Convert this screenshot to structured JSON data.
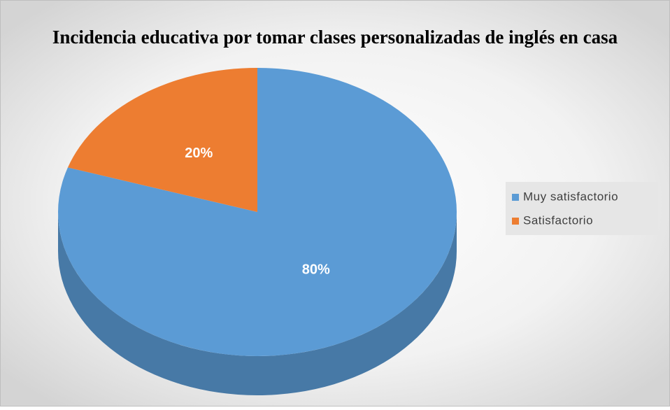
{
  "chart_data": {
    "type": "pie",
    "title": "Incidencia educativa por tomar clases personalizadas de inglés en casa",
    "categories": [
      "Muy satisfactorio",
      "Satisfactorio"
    ],
    "values": [
      80,
      20
    ],
    "value_labels": [
      "80%",
      "20%"
    ],
    "colors": [
      "#5b9bd5",
      "#ed7d31"
    ],
    "legend": "right"
  }
}
